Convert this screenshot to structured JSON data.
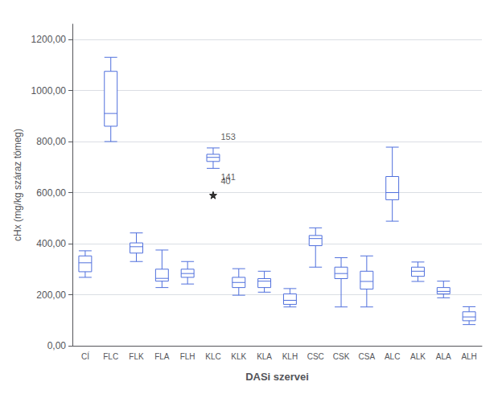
{
  "chart_data": {
    "type": "boxplot",
    "xlabel": "DASi szervei",
    "ylabel": "cHx (mg/kg száraz tömeg)",
    "categories": [
      "CÍ",
      "FLC",
      "FLK",
      "FLA",
      "FLH",
      "KLC",
      "KLK",
      "KLA",
      "KLH",
      "CSC",
      "CSK",
      "CSA",
      "ALC",
      "ALK",
      "ALA",
      "ALH"
    ],
    "values": [
      [
        268,
        290,
        325,
        352,
        372
      ],
      [
        800,
        860,
        910,
        1075,
        1130
      ],
      [
        330,
        363,
        388,
        403,
        442
      ],
      [
        228,
        253,
        264,
        300,
        375
      ],
      [
        242,
        268,
        283,
        300,
        330
      ],
      [
        695,
        722,
        738,
        750,
        775
      ],
      [
        198,
        228,
        248,
        268,
        302
      ],
      [
        210,
        228,
        253,
        263,
        292
      ],
      [
        152,
        162,
        178,
        203,
        224
      ],
      [
        308,
        392,
        420,
        432,
        462
      ],
      [
        152,
        263,
        283,
        308,
        345
      ],
      [
        152,
        222,
        252,
        292,
        352
      ],
      [
        488,
        572,
        600,
        663,
        778
      ],
      [
        252,
        272,
        292,
        308,
        328
      ],
      [
        188,
        203,
        213,
        228,
        253
      ],
      [
        83,
        98,
        113,
        133,
        153
      ]
    ],
    "outliers": [
      {
        "category": "KLC",
        "y": 820,
        "marker": "circle",
        "label": "153"
      },
      {
        "category": "KLC",
        "y": 660,
        "marker": "circle",
        "label": "141"
      },
      {
        "category": "KLC",
        "y": 645,
        "marker": "circle",
        "label": "40"
      },
      {
        "category": "KLC",
        "y": 590,
        "marker": "star"
      }
    ],
    "ylim": [
      0,
      1260
    ],
    "yticks": [
      {
        "value": 0,
        "label": "0,00"
      },
      {
        "value": 200,
        "label": "200,00"
      },
      {
        "value": 400,
        "label": "400,00"
      },
      {
        "value": 600,
        "label": "600,00"
      },
      {
        "value": 800,
        "label": "800,00"
      },
      {
        "value": 1000,
        "label": "1000,00"
      },
      {
        "value": 1200,
        "label": "1200,00"
      }
    ],
    "grid": true
  }
}
